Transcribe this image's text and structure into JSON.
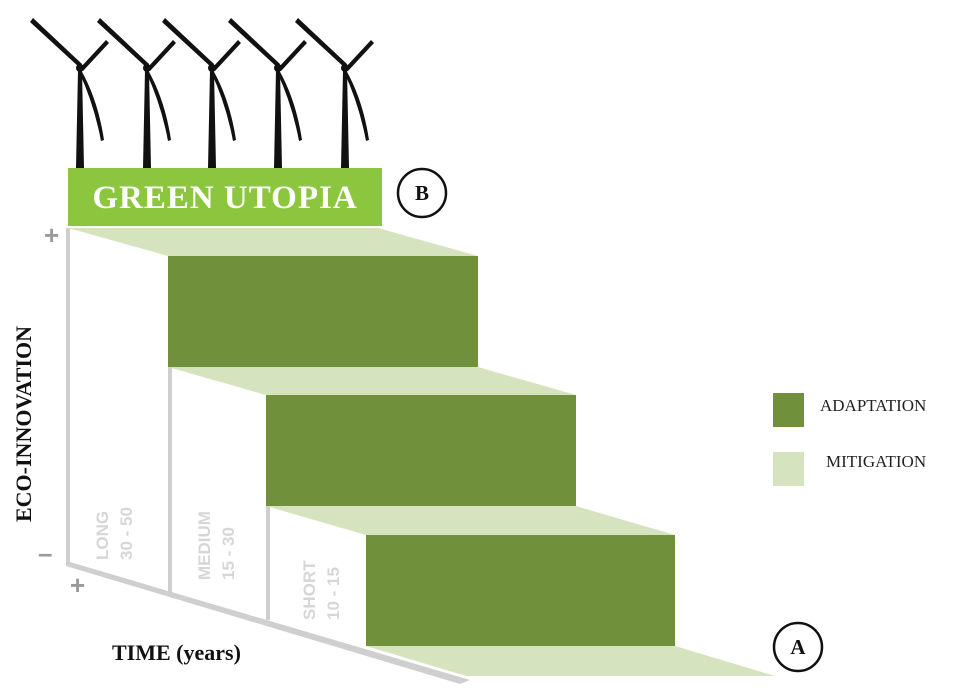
{
  "banner": {
    "title": "GREEN UTOPIA",
    "marker": "B"
  },
  "start_marker": "A",
  "axes": {
    "y_title": "ECO-INNOVATION",
    "x_title": "TIME (years)",
    "y_plus": "+",
    "y_minus": "–",
    "x_plus": "+",
    "x_minus": "–"
  },
  "stages": [
    {
      "name": "LONG",
      "range": "30 - 50"
    },
    {
      "name": "MEDIUM",
      "range": "15 - 30"
    },
    {
      "name": "SHORT",
      "range": "10 - 15"
    }
  ],
  "legend": [
    {
      "label": "ADAPTATION",
      "color": "#71903b"
    },
    {
      "label": "MITIGATION",
      "color": "#d5e4bf"
    }
  ],
  "colors": {
    "banner": "#8cc63e",
    "adaptation": "#71903b",
    "mitigation": "#d5e4bf",
    "wall": "#cfcfcf",
    "turbine": "#111111"
  },
  "icons": [
    "wind-turbine-icon"
  ]
}
